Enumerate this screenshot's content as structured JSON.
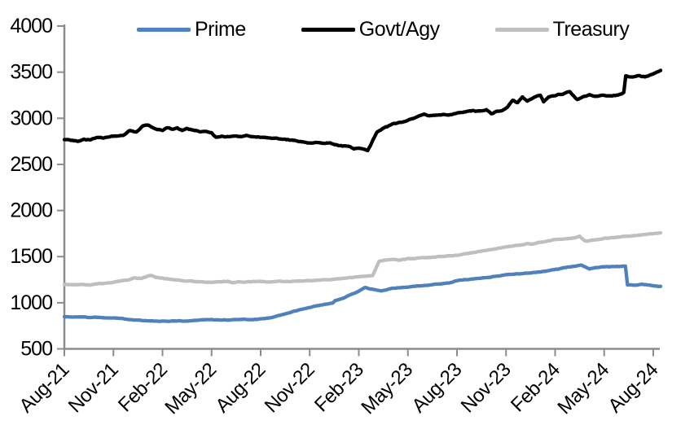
{
  "chart_data": {
    "type": "line",
    "title": "",
    "xlabel": "",
    "ylabel": "",
    "background_color": "#FFFFFF",
    "axis_color": "#8C8C8C",
    "text_color": "#000000",
    "grid": false,
    "legend_position": "top",
    "x_unit": "months since Aug-2021",
    "xlim": [
      0,
      36.6
    ],
    "ylim": [
      500,
      4000
    ],
    "y_ticks": [
      4000,
      3500,
      3000,
      2500,
      2000,
      1500,
      1000,
      500
    ],
    "x_ticks": [
      {
        "m": 0,
        "label": "Aug-21"
      },
      {
        "m": 3,
        "label": "Nov-21"
      },
      {
        "m": 6,
        "label": "Feb-22"
      },
      {
        "m": 9,
        "label": "May-22"
      },
      {
        "m": 12,
        "label": "Aug-22"
      },
      {
        "m": 15,
        "label": "Nov-22"
      },
      {
        "m": 18,
        "label": "Feb-23"
      },
      {
        "m": 21,
        "label": "May-23"
      },
      {
        "m": 24,
        "label": "Aug-23"
      },
      {
        "m": 27,
        "label": "Nov-23"
      },
      {
        "m": 30,
        "label": "Feb-24"
      },
      {
        "m": 33,
        "label": "May-24"
      },
      {
        "m": 36,
        "label": "Aug-24"
      }
    ],
    "series": [
      {
        "name": "Prime",
        "color": "#4F81BD",
        "points": [
          [
            0,
            850
          ],
          [
            0.5,
            844
          ],
          [
            1,
            848
          ],
          [
            1.5,
            841
          ],
          [
            2,
            844
          ],
          [
            2.5,
            836
          ],
          [
            3,
            838
          ],
          [
            3.5,
            828
          ],
          [
            4,
            820
          ],
          [
            4.5,
            812
          ],
          [
            5,
            806
          ],
          [
            5.5,
            800
          ],
          [
            6,
            798
          ],
          [
            6.5,
            801
          ],
          [
            7,
            804
          ],
          [
            7.5,
            800
          ],
          [
            8,
            810
          ],
          [
            8.5,
            816
          ],
          [
            9,
            818
          ],
          [
            9.5,
            812
          ],
          [
            10,
            813
          ],
          [
            10.5,
            819
          ],
          [
            11,
            821
          ],
          [
            11.5,
            816
          ],
          [
            12,
            824
          ],
          [
            12.5,
            834
          ],
          [
            13,
            856
          ],
          [
            13.5,
            880
          ],
          [
            14,
            906
          ],
          [
            14.5,
            928
          ],
          [
            15,
            948
          ],
          [
            15.5,
            968
          ],
          [
            16,
            984
          ],
          [
            16.4,
            996
          ],
          [
            16.55,
            1022
          ],
          [
            17,
            1046
          ],
          [
            17.5,
            1086
          ],
          [
            18,
            1126
          ],
          [
            18.4,
            1166
          ],
          [
            18.7,
            1152
          ],
          [
            19,
            1142
          ],
          [
            19.4,
            1128
          ],
          [
            20,
            1155
          ],
          [
            20.5,
            1163
          ],
          [
            21,
            1170
          ],
          [
            21.5,
            1180
          ],
          [
            22,
            1188
          ],
          [
            22.5,
            1196
          ],
          [
            23,
            1205
          ],
          [
            23.5,
            1215
          ],
          [
            24,
            1240
          ],
          [
            24.5,
            1250
          ],
          [
            25,
            1258
          ],
          [
            25.5,
            1268
          ],
          [
            26,
            1278
          ],
          [
            26.5,
            1290
          ],
          [
            27,
            1305
          ],
          [
            27.5,
            1310
          ],
          [
            28,
            1316
          ],
          [
            28.5,
            1324
          ],
          [
            29,
            1332
          ],
          [
            29.5,
            1344
          ],
          [
            30,
            1360
          ],
          [
            30.4,
            1372
          ],
          [
            30.8,
            1386
          ],
          [
            31.2,
            1398
          ],
          [
            31.6,
            1410
          ],
          [
            32.1,
            1368
          ],
          [
            32.5,
            1382
          ],
          [
            33,
            1388
          ],
          [
            33.5,
            1392
          ],
          [
            34,
            1396
          ],
          [
            34.3,
            1398
          ],
          [
            34.42,
            1192
          ],
          [
            34.9,
            1190
          ],
          [
            35.3,
            1202
          ],
          [
            35.7,
            1192
          ],
          [
            36.05,
            1183
          ],
          [
            36.45,
            1176
          ]
        ]
      },
      {
        "name": "Govt/Agy",
        "color": "#000000",
        "points": [
          [
            0,
            2770
          ],
          [
            0.4,
            2758
          ],
          [
            0.8,
            2752
          ],
          [
            1.2,
            2772
          ],
          [
            1.6,
            2766
          ],
          [
            2,
            2790
          ],
          [
            2.4,
            2784
          ],
          [
            2.8,
            2802
          ],
          [
            3.2,
            2806
          ],
          [
            3.6,
            2818
          ],
          [
            4,
            2868
          ],
          [
            4.4,
            2852
          ],
          [
            4.8,
            2915
          ],
          [
            5.1,
            2930
          ],
          [
            5.4,
            2898
          ],
          [
            5.7,
            2882
          ],
          [
            6,
            2870
          ],
          [
            6.3,
            2898
          ],
          [
            6.6,
            2882
          ],
          [
            6.9,
            2895
          ],
          [
            7.2,
            2868
          ],
          [
            7.5,
            2888
          ],
          [
            7.9,
            2872
          ],
          [
            8.3,
            2856
          ],
          [
            8.7,
            2862
          ],
          [
            9,
            2845
          ],
          [
            9.25,
            2795
          ],
          [
            9.6,
            2802
          ],
          [
            10,
            2798
          ],
          [
            10.4,
            2810
          ],
          [
            10.8,
            2800
          ],
          [
            11.2,
            2812
          ],
          [
            11.6,
            2800
          ],
          [
            12,
            2796
          ],
          [
            12.5,
            2788
          ],
          [
            13,
            2780
          ],
          [
            13.5,
            2770
          ],
          [
            14,
            2762
          ],
          [
            14.5,
            2744
          ],
          [
            15,
            2732
          ],
          [
            15.4,
            2740
          ],
          [
            15.8,
            2726
          ],
          [
            16.2,
            2736
          ],
          [
            16.6,
            2714
          ],
          [
            17,
            2700
          ],
          [
            17.4,
            2694
          ],
          [
            17.7,
            2668
          ],
          [
            18,
            2678
          ],
          [
            18.3,
            2662
          ],
          [
            18.55,
            2652
          ],
          [
            18.8,
            2742
          ],
          [
            19.1,
            2850
          ],
          [
            19.45,
            2890
          ],
          [
            19.8,
            2912
          ],
          [
            20.1,
            2940
          ],
          [
            20.5,
            2955
          ],
          [
            20.9,
            2975
          ],
          [
            21.3,
            2998
          ],
          [
            21.7,
            3025
          ],
          [
            22,
            3048
          ],
          [
            22.3,
            3028
          ],
          [
            22.7,
            3035
          ],
          [
            23.1,
            3042
          ],
          [
            23.5,
            3036
          ],
          [
            24,
            3058
          ],
          [
            24.5,
            3070
          ],
          [
            25,
            3082
          ],
          [
            25.4,
            3076
          ],
          [
            25.8,
            3092
          ],
          [
            26.1,
            3048
          ],
          [
            26.45,
            3080
          ],
          [
            26.8,
            3088
          ],
          [
            27.1,
            3118
          ],
          [
            27.4,
            3195
          ],
          [
            27.7,
            3172
          ],
          [
            28,
            3228
          ],
          [
            28.3,
            3192
          ],
          [
            28.7,
            3228
          ],
          [
            29.1,
            3250
          ],
          [
            29.3,
            3182
          ],
          [
            29.6,
            3232
          ],
          [
            30,
            3250
          ],
          [
            30.5,
            3262
          ],
          [
            30.9,
            3288
          ],
          [
            31.35,
            3202
          ],
          [
            31.7,
            3240
          ],
          [
            32.1,
            3252
          ],
          [
            32.5,
            3238
          ],
          [
            32.9,
            3246
          ],
          [
            33.3,
            3240
          ],
          [
            33.7,
            3250
          ],
          [
            34.05,
            3258
          ],
          [
            34.2,
            3280
          ],
          [
            34.32,
            3462
          ],
          [
            34.7,
            3446
          ],
          [
            35.1,
            3462
          ],
          [
            35.5,
            3450
          ],
          [
            35.9,
            3472
          ],
          [
            36.2,
            3498
          ],
          [
            36.45,
            3518
          ]
        ]
      },
      {
        "name": "Treasury",
        "color": "#BFBFBF",
        "points": [
          [
            0,
            1200
          ],
          [
            0.5,
            1193
          ],
          [
            1,
            1198
          ],
          [
            1.5,
            1193
          ],
          [
            2,
            1202
          ],
          [
            2.5,
            1210
          ],
          [
            3,
            1222
          ],
          [
            3.5,
            1240
          ],
          [
            4,
            1252
          ],
          [
            4.3,
            1268
          ],
          [
            4.7,
            1262
          ],
          [
            5,
            1282
          ],
          [
            5.3,
            1300
          ],
          [
            5.6,
            1278
          ],
          [
            6,
            1268
          ],
          [
            6.5,
            1252
          ],
          [
            7,
            1243
          ],
          [
            7.5,
            1238
          ],
          [
            8,
            1230
          ],
          [
            8.5,
            1225
          ],
          [
            9,
            1222
          ],
          [
            9.5,
            1228
          ],
          [
            10,
            1232
          ],
          [
            10.3,
            1218
          ],
          [
            10.7,
            1228
          ],
          [
            11,
            1224
          ],
          [
            11.5,
            1228
          ],
          [
            12,
            1230
          ],
          [
            12.5,
            1226
          ],
          [
            13,
            1230
          ],
          [
            13.5,
            1228
          ],
          [
            14,
            1233
          ],
          [
            14.5,
            1236
          ],
          [
            15,
            1240
          ],
          [
            15.5,
            1244
          ],
          [
            16,
            1250
          ],
          [
            16.5,
            1256
          ],
          [
            17,
            1264
          ],
          [
            17.5,
            1272
          ],
          [
            18,
            1280
          ],
          [
            18.4,
            1288
          ],
          [
            18.85,
            1292
          ],
          [
            19.25,
            1452
          ],
          [
            19.6,
            1462
          ],
          [
            20,
            1468
          ],
          [
            20.5,
            1462
          ],
          [
            21,
            1478
          ],
          [
            21.5,
            1482
          ],
          [
            22,
            1488
          ],
          [
            22.5,
            1494
          ],
          [
            23,
            1500
          ],
          [
            23.5,
            1508
          ],
          [
            24,
            1516
          ],
          [
            24.5,
            1530
          ],
          [
            25,
            1545
          ],
          [
            25.5,
            1560
          ],
          [
            26,
            1575
          ],
          [
            26.5,
            1590
          ],
          [
            27,
            1605
          ],
          [
            27.5,
            1618
          ],
          [
            28,
            1628
          ],
          [
            28.3,
            1638
          ],
          [
            28.7,
            1635
          ],
          [
            29,
            1655
          ],
          [
            29.5,
            1668
          ],
          [
            30,
            1688
          ],
          [
            30.5,
            1692
          ],
          [
            31,
            1700
          ],
          [
            31.5,
            1718
          ],
          [
            31.85,
            1668
          ],
          [
            32.3,
            1680
          ],
          [
            32.7,
            1688
          ],
          [
            33,
            1698
          ],
          [
            33.5,
            1705
          ],
          [
            34,
            1715
          ],
          [
            34.5,
            1722
          ],
          [
            35,
            1730
          ],
          [
            35.5,
            1738
          ],
          [
            36,
            1748
          ],
          [
            36.45,
            1758
          ]
        ]
      }
    ],
    "legend_order": [
      "Prime",
      "Govt/Agy",
      "Treasury"
    ]
  }
}
